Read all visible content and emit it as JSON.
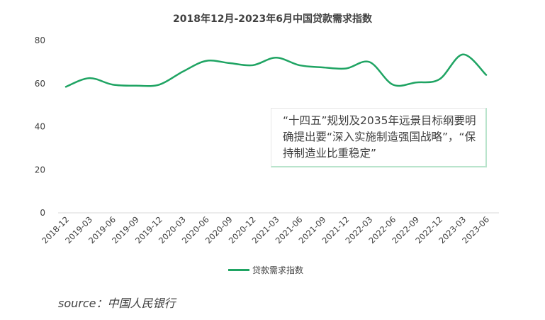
{
  "chart_data": {
    "type": "line",
    "title": "2018年12月-2023年6月中国贷款需求指数",
    "x": [
      "2018-12",
      "2019-03",
      "2019-06",
      "2019-09",
      "2019-12",
      "2020-03",
      "2020-06",
      "2020-09",
      "2020-12",
      "2021-03",
      "2021-06",
      "2021-09",
      "2021-12",
      "2022-03",
      "2022-06",
      "2022-09",
      "2022-12",
      "2023-03",
      "2023-06"
    ],
    "series": [
      {
        "name": "贷款需求指数",
        "values": [
          58.5,
          62.5,
          59.5,
          59,
          59.5,
          65.5,
          70.5,
          69.5,
          68.5,
          72,
          68.5,
          67.5,
          67,
          70,
          59.5,
          60.5,
          62,
          73.5,
          64
        ]
      }
    ],
    "ylim": [
      0,
      80
    ],
    "yticks": [
      0,
      20,
      40,
      60,
      80
    ],
    "grid": false,
    "legend_position": "bottom",
    "color": "#1fa463",
    "annotation": "“十四五”规划及2035年远景目标纲要明确提出要“深入实施制造强国战略”，“保持制造业比重稳定”"
  },
  "source": "source：中国人民银行"
}
